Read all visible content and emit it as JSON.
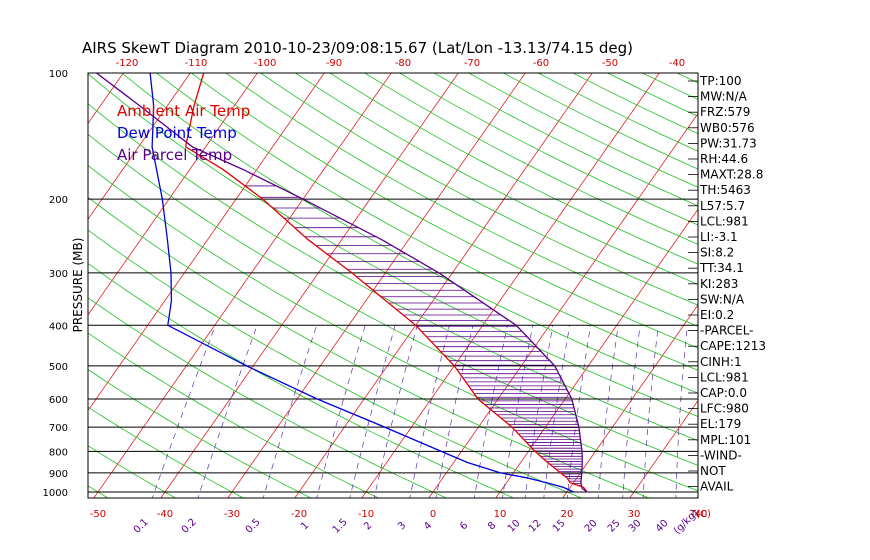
{
  "chart_data": {
    "type": "line",
    "title": "AIRS SkewT Diagram 2010-10-23/09:08:15.67 (Lat/Lon -13.13/74.15 deg)",
    "ylabel": "PRESSURE (MB)",
    "xlabel_bottom": "T(C)",
    "xlabel_mixing": "(g/kg)",
    "y_scale": "log",
    "ylim": [
      1050,
      100
    ],
    "xlim_bottom": [
      -53,
      40
    ],
    "pressure_ticks": [
      100,
      200,
      300,
      400,
      500,
      600,
      700,
      800,
      900,
      1000
    ],
    "bottom_temp_ticks": [
      -50,
      -40,
      -30,
      -20,
      -10,
      0,
      10,
      20,
      30,
      40
    ],
    "top_temp_ticks": [
      -120,
      -110,
      -100,
      -90,
      -80,
      -70,
      -60,
      -50,
      -40
    ],
    "mixing_ratio_ticks": [
      "0.1",
      "0.2",
      "0.5",
      "1",
      "1.5",
      "2",
      "3",
      "4",
      "6",
      "8",
      "10",
      "12",
      "15",
      "20",
      "25",
      "30",
      "40"
    ],
    "legend": [
      {
        "label": "Ambient Air Temp",
        "color": "#e00000"
      },
      {
        "label": "Dew Point Temp",
        "color": "#0000e0"
      },
      {
        "label": "Air Parcel Temp",
        "color": "#5a0088"
      }
    ],
    "series": [
      {
        "name": "Ambient Air Temp",
        "color": "#e00000",
        "points": [
          [
            1000,
            23
          ],
          [
            975,
            22
          ],
          [
            950,
            19.5
          ],
          [
            925,
            18.5
          ],
          [
            900,
            17
          ],
          [
            850,
            14
          ],
          [
            800,
            11
          ],
          [
            700,
            5
          ],
          [
            600,
            -3
          ],
          [
            500,
            -10
          ],
          [
            400,
            -20
          ],
          [
            300,
            -35
          ],
          [
            250,
            -45
          ],
          [
            200,
            -56
          ],
          [
            170,
            -65
          ],
          [
            150,
            -73
          ],
          [
            120,
            -76
          ],
          [
            100,
            -78
          ]
        ]
      },
      {
        "name": "Dew Point Temp",
        "color": "#0000e0",
        "points": [
          [
            1000,
            21
          ],
          [
            975,
            19
          ],
          [
            950,
            16
          ],
          [
            925,
            12.5
          ],
          [
            900,
            8
          ],
          [
            850,
            2
          ],
          [
            800,
            -3
          ],
          [
            700,
            -14
          ],
          [
            600,
            -27
          ],
          [
            500,
            -41
          ],
          [
            400,
            -57
          ],
          [
            350,
            -59
          ],
          [
            300,
            -62
          ],
          [
            250,
            -66
          ],
          [
            200,
            -71
          ],
          [
            150,
            -78
          ],
          [
            120,
            -82
          ],
          [
            100,
            -86
          ]
        ]
      },
      {
        "name": "Air Parcel Temp",
        "color": "#5a0088",
        "points": [
          [
            1000,
            23
          ],
          [
            981,
            21.9
          ],
          [
            950,
            21.1
          ],
          [
            900,
            20.2
          ],
          [
            850,
            19.2
          ],
          [
            800,
            18
          ],
          [
            700,
            15
          ],
          [
            600,
            11
          ],
          [
            500,
            5
          ],
          [
            400,
            -5
          ],
          [
            300,
            -22
          ],
          [
            250,
            -34
          ],
          [
            200,
            -50
          ],
          [
            170,
            -62
          ],
          [
            150,
            -72
          ],
          [
            120,
            -84
          ],
          [
            100,
            -94
          ]
        ]
      }
    ],
    "indices": [
      "TP:100",
      "MW:N/A",
      "FRZ:579",
      "WB0:576",
      "PW:31.73",
      "RH:44.6",
      "MAXT:28.8",
      "TH:5463",
      "L57:5.7",
      "LCL:981",
      "LI:-3.1",
      "SI:8.2",
      "TT:34.1",
      "KI:283",
      "SW:N/A",
      "EI:0.2",
      "-PARCEL-",
      "CAPE:1213",
      "CINH:1",
      "LCL:981",
      "CAP:0.0",
      "LFC:980",
      "EL:179",
      "MPL:101",
      "-WIND-",
      "NOT",
      "AVAIL"
    ]
  }
}
